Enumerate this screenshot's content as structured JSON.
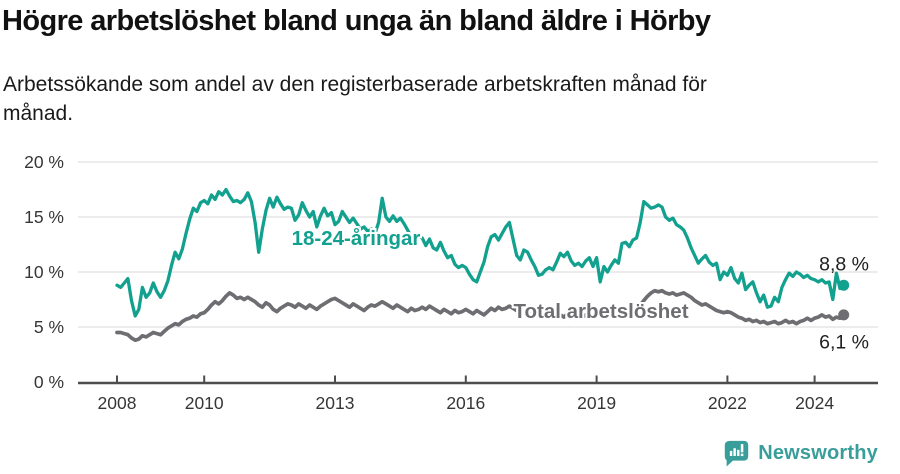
{
  "header": {
    "title": "Högre arbetslöshet bland unga än bland äldre i Hörby",
    "subtitle": "Arbetssökande som andel av den registerbaserade arbetskraften månad för månad."
  },
  "footer": {
    "brand": "Newsworthy",
    "brand_color": "#399e99"
  },
  "colors": {
    "young_line": "#12a08f",
    "total_line": "#6e6e72",
    "grid": "#dadada",
    "axis": "#4d4d4d",
    "tick_text": "#363636",
    "value_text": "#222222"
  },
  "chart_data": {
    "type": "line",
    "title": "Högre arbetslöshet bland unga än bland äldre i Hörby",
    "subtitle": "Arbetssökande som andel av den registerbaserade arbetskraften månad för månad.",
    "x_unit": "month",
    "x_start": "2008-01",
    "x_end": "2024-09",
    "x_ticks": [
      2008,
      2010,
      2013,
      2016,
      2019,
      2022,
      2024
    ],
    "x_tick_labels": [
      "2008",
      "2010",
      "2013",
      "2016",
      "2019",
      "2022",
      "2024"
    ],
    "y_ticks": [
      0,
      5,
      10,
      15,
      20
    ],
    "y_tick_labels": [
      "0 %",
      "5 %",
      "10 %",
      "15 %",
      "20 %"
    ],
    "ylim": [
      0,
      20
    ],
    "grid": true,
    "legend_position": "inline-labels",
    "series": [
      {
        "name": "18-24-åringar",
        "color": "#12a08f",
        "end_label": "8,8 %",
        "end_value": 8.8,
        "values": [
          8.8,
          8.6,
          9.0,
          9.4,
          7.4,
          6.0,
          6.6,
          8.6,
          7.7,
          8.1,
          9.0,
          8.2,
          7.7,
          8.3,
          9.2,
          10.6,
          11.8,
          11.2,
          12.1,
          13.5,
          14.8,
          15.8,
          15.5,
          16.3,
          16.5,
          16.2,
          17.0,
          16.6,
          17.3,
          17.0,
          17.5,
          16.9,
          16.4,
          16.5,
          16.3,
          16.6,
          17.2,
          16.4,
          14.5,
          11.8,
          13.9,
          15.6,
          16.7,
          15.9,
          16.8,
          16.2,
          15.7,
          15.9,
          15.8,
          14.7,
          15.2,
          16.3,
          15.6,
          15.0,
          15.5,
          14.1,
          15.1,
          15.8,
          15.1,
          15.4,
          14.3,
          14.6,
          15.5,
          15.0,
          14.5,
          14.9,
          14.4,
          13.9,
          14.1,
          13.7,
          13.9,
          13.5,
          14.5,
          16.7,
          15.0,
          14.6,
          15.1,
          14.6,
          14.9,
          14.4,
          13.8,
          13.2,
          12.9,
          13.2,
          13.1,
          12.4,
          13.0,
          12.2,
          12.0,
          12.7,
          11.9,
          11.3,
          11.5,
          10.7,
          10.4,
          10.6,
          10.4,
          9.8,
          9.3,
          9.1,
          10.0,
          10.9,
          12.3,
          13.2,
          13.4,
          12.9,
          13.5,
          14.1,
          14.5,
          13.0,
          11.5,
          11.1,
          12.0,
          11.8,
          11.1,
          10.5,
          9.7,
          9.8,
          10.2,
          10.4,
          10.2,
          10.9,
          11.7,
          11.4,
          11.8,
          11.0,
          10.6,
          10.8,
          10.5,
          11.0,
          11.3,
          10.5,
          11.3,
          9.1,
          10.5,
          10.0,
          10.6,
          11.1,
          10.8,
          12.6,
          12.7,
          12.3,
          12.9,
          13.1,
          14.5,
          16.4,
          16.1,
          15.8,
          15.9,
          16.1,
          15.9,
          15.0,
          14.7,
          14.9,
          14.3,
          14.1,
          13.8,
          13.1,
          12.2,
          11.5,
          10.8,
          11.2,
          11.5,
          10.9,
          10.6,
          10.8,
          9.3,
          10.0,
          9.7,
          10.4,
          9.4,
          9.0,
          9.9,
          8.4,
          8.8,
          9.1,
          8.1,
          7.3,
          7.9,
          6.8,
          6.9,
          7.7,
          7.3,
          8.6,
          9.3,
          9.9,
          9.6,
          10.0,
          9.8,
          9.5,
          9.7,
          9.4,
          9.3,
          9.1,
          9.3,
          9.0,
          9.1,
          7.5,
          9.9,
          8.5,
          8.8
        ]
      },
      {
        "name": "Total arbetslöshet",
        "color": "#6e6e72",
        "end_label": "6,1 %",
        "end_value": 6.1,
        "values": [
          4.5,
          4.5,
          4.4,
          4.3,
          4.0,
          3.8,
          3.9,
          4.2,
          4.1,
          4.3,
          4.5,
          4.4,
          4.3,
          4.6,
          4.9,
          5.1,
          5.3,
          5.2,
          5.5,
          5.7,
          5.8,
          6.0,
          5.9,
          6.2,
          6.3,
          6.6,
          7.0,
          7.3,
          7.1,
          7.4,
          7.8,
          8.1,
          7.9,
          7.6,
          7.7,
          7.5,
          7.7,
          7.5,
          7.3,
          7.0,
          6.8,
          7.2,
          7.0,
          6.6,
          6.4,
          6.7,
          6.9,
          7.1,
          7.0,
          6.8,
          7.1,
          6.9,
          6.7,
          7.0,
          6.8,
          6.6,
          6.9,
          7.1,
          7.3,
          7.5,
          7.6,
          7.4,
          7.2,
          7.0,
          6.8,
          7.1,
          6.9,
          6.7,
          6.5,
          6.8,
          7.0,
          6.9,
          7.1,
          7.3,
          7.1,
          6.9,
          6.7,
          7.0,
          6.8,
          6.6,
          6.4,
          6.7,
          6.5,
          6.6,
          6.8,
          6.6,
          6.9,
          6.7,
          6.5,
          6.3,
          6.6,
          6.4,
          6.2,
          6.5,
          6.3,
          6.4,
          6.6,
          6.4,
          6.2,
          6.5,
          6.3,
          6.1,
          6.4,
          6.7,
          6.5,
          6.8,
          6.6,
          6.7,
          6.9,
          6.7,
          6.5,
          6.8,
          6.6,
          6.4,
          6.2,
          6.5,
          6.3,
          6.1,
          6.4,
          6.2,
          6.0,
          6.3,
          6.1,
          5.9,
          6.2,
          6.0,
          5.8,
          6.1,
          5.9,
          6.1,
          6.0,
          6.2,
          6.1,
          5.9,
          6.2,
          6.0,
          6.3,
          6.1,
          6.4,
          6.2,
          6.5,
          6.3,
          6.6,
          6.8,
          7.0,
          7.4,
          7.8,
          8.1,
          8.3,
          8.2,
          8.3,
          8.1,
          8.0,
          8.1,
          7.9,
          8.0,
          8.1,
          7.9,
          7.7,
          7.4,
          7.2,
          7.0,
          7.1,
          6.9,
          6.7,
          6.5,
          6.4,
          6.3,
          6.4,
          6.3,
          6.1,
          5.9,
          5.8,
          5.6,
          5.7,
          5.5,
          5.6,
          5.4,
          5.5,
          5.3,
          5.4,
          5.5,
          5.3,
          5.4,
          5.6,
          5.4,
          5.5,
          5.3,
          5.5,
          5.6,
          5.8,
          5.6,
          5.8,
          5.9,
          6.1,
          5.9,
          6.0,
          5.7,
          5.9,
          5.8,
          6.1
        ]
      }
    ]
  }
}
